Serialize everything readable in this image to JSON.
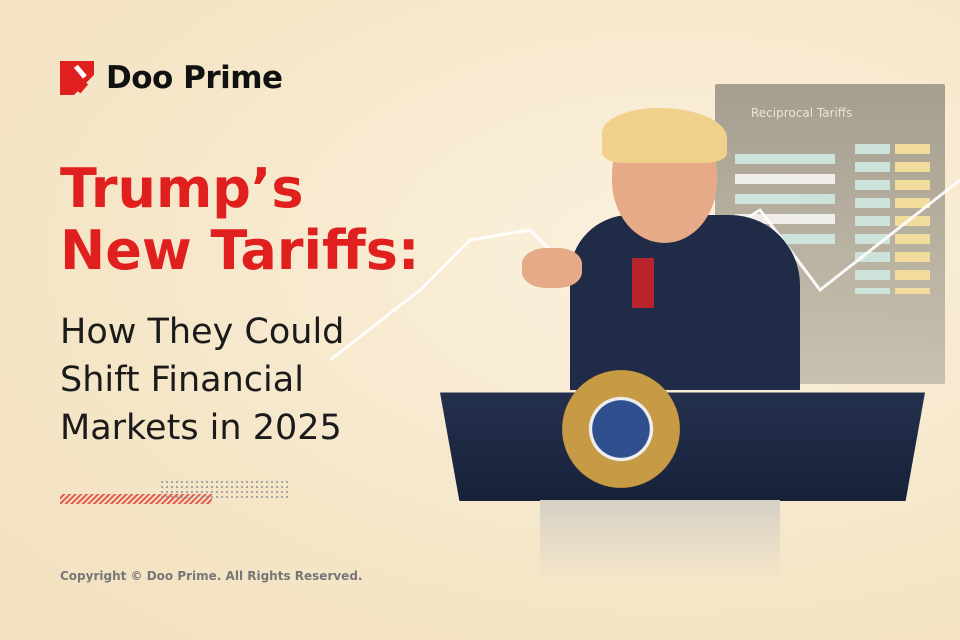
{
  "brand": {
    "name": "Doo Prime",
    "accent": "#e0201f"
  },
  "headline": {
    "line1": "Trump’s",
    "line2": "New Tariffs:",
    "line3": "How They Could",
    "line4": "Shift Financial",
    "line5": "Markets in 2025"
  },
  "background_board": {
    "title": "Reciprocal Tariffs"
  },
  "footer": {
    "copyright": "Copyright © Doo Prime. All Rights Reserved."
  }
}
